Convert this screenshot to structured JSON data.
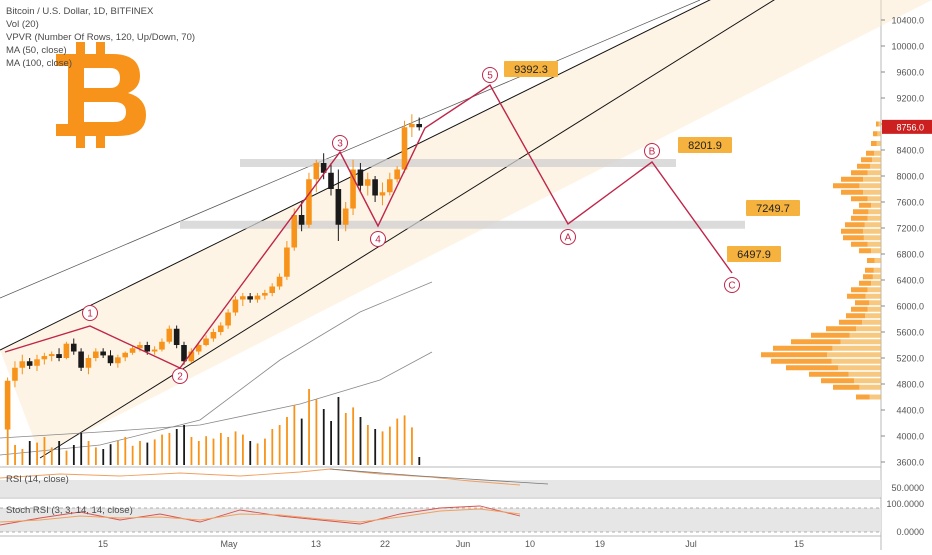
{
  "title": "Bitcoin / U.S. Dollar, 1D, BITFINEX",
  "indicators": [
    "Vol (20)",
    "VPVR (Number Of Rows, 120, Up/Down, 70)",
    "MA (50, close)",
    "MA (100, close)"
  ],
  "rsi_label": "RSI (14, close)",
  "stoch_label": "Stoch RSI (3, 3, 14, 14, close)",
  "logo_icon": "bitcoin-logo-icon",
  "colors": {
    "up": "#f7931a",
    "down": "#1a1a1a",
    "wave": "#c0254a",
    "callout": "#f6b23e",
    "price_tag": "#cc1f1f",
    "channel": "#fbe7c6"
  },
  "chart_data": {
    "type": "candlestick",
    "y_range": [
      3600,
      10800
    ],
    "x_ticks": [
      "15",
      "May",
      "13",
      "22",
      "Jun",
      "10",
      "19",
      "Jul",
      "15"
    ],
    "y_ticks": [
      "10400.0",
      "10000.0",
      "9600.0",
      "9200.0",
      "8800.0",
      "8400.0",
      "8000.0",
      "7600.0",
      "7200.0",
      "6800.0",
      "6400.0",
      "6000.0",
      "5600.0",
      "5200.0",
      "4800.0",
      "4400.0",
      "4000.0",
      "3600.0"
    ],
    "current_price": "8756.0",
    "candles": [
      {
        "o": 4100,
        "h": 4900,
        "l": 3950,
        "c": 4850
      },
      {
        "o": 4850,
        "h": 5150,
        "l": 4750,
        "c": 5050
      },
      {
        "o": 5050,
        "h": 5250,
        "l": 4950,
        "c": 5150
      },
      {
        "o": 5150,
        "h": 5200,
        "l": 5030,
        "c": 5080
      },
      {
        "o": 5080,
        "h": 5250,
        "l": 5000,
        "c": 5180
      },
      {
        "o": 5180,
        "h": 5280,
        "l": 5100,
        "c": 5230
      },
      {
        "o": 5230,
        "h": 5300,
        "l": 5150,
        "c": 5260
      },
      {
        "o": 5260,
        "h": 5350,
        "l": 5150,
        "c": 5200
      },
      {
        "o": 5200,
        "h": 5450,
        "l": 5180,
        "c": 5420
      },
      {
        "o": 5420,
        "h": 5500,
        "l": 5250,
        "c": 5300
      },
      {
        "o": 5300,
        "h": 5350,
        "l": 5000,
        "c": 5050
      },
      {
        "o": 5050,
        "h": 5250,
        "l": 4950,
        "c": 5200
      },
      {
        "o": 5200,
        "h": 5350,
        "l": 5150,
        "c": 5300
      },
      {
        "o": 5300,
        "h": 5350,
        "l": 5200,
        "c": 5240
      },
      {
        "o": 5240,
        "h": 5320,
        "l": 5080,
        "c": 5120
      },
      {
        "o": 5120,
        "h": 5250,
        "l": 5050,
        "c": 5210
      },
      {
        "o": 5210,
        "h": 5300,
        "l": 5150,
        "c": 5280
      },
      {
        "o": 5280,
        "h": 5380,
        "l": 5250,
        "c": 5350
      },
      {
        "o": 5350,
        "h": 5450,
        "l": 5300,
        "c": 5400
      },
      {
        "o": 5400,
        "h": 5450,
        "l": 5250,
        "c": 5300
      },
      {
        "o": 5300,
        "h": 5380,
        "l": 5250,
        "c": 5330
      },
      {
        "o": 5330,
        "h": 5500,
        "l": 5300,
        "c": 5450
      },
      {
        "o": 5450,
        "h": 5700,
        "l": 5420,
        "c": 5650
      },
      {
        "o": 5650,
        "h": 5700,
        "l": 5350,
        "c": 5400
      },
      {
        "o": 5400,
        "h": 5450,
        "l": 5100,
        "c": 5150
      },
      {
        "o": 5150,
        "h": 5350,
        "l": 5120,
        "c": 5300
      },
      {
        "o": 5300,
        "h": 5450,
        "l": 5250,
        "c": 5400
      },
      {
        "o": 5400,
        "h": 5550,
        "l": 5380,
        "c": 5500
      },
      {
        "o": 5500,
        "h": 5650,
        "l": 5450,
        "c": 5600
      },
      {
        "o": 5600,
        "h": 5750,
        "l": 5550,
        "c": 5700
      },
      {
        "o": 5700,
        "h": 5950,
        "l": 5650,
        "c": 5900
      },
      {
        "o": 5900,
        "h": 6150,
        "l": 5850,
        "c": 6100
      },
      {
        "o": 6100,
        "h": 6200,
        "l": 6000,
        "c": 6150
      },
      {
        "o": 6150,
        "h": 6200,
        "l": 6050,
        "c": 6100
      },
      {
        "o": 6100,
        "h": 6200,
        "l": 6050,
        "c": 6160
      },
      {
        "o": 6160,
        "h": 6250,
        "l": 6100,
        "c": 6200
      },
      {
        "o": 6200,
        "h": 6350,
        "l": 6150,
        "c": 6300
      },
      {
        "o": 6300,
        "h": 6500,
        "l": 6250,
        "c": 6450
      },
      {
        "o": 6450,
        "h": 7000,
        "l": 6400,
        "c": 6900
      },
      {
        "o": 6900,
        "h": 7500,
        "l": 6850,
        "c": 7400
      },
      {
        "o": 7400,
        "h": 7600,
        "l": 7150,
        "c": 7250
      },
      {
        "o": 7250,
        "h": 8050,
        "l": 7200,
        "c": 7950
      },
      {
        "o": 7950,
        "h": 8250,
        "l": 7750,
        "c": 8200
      },
      {
        "o": 8200,
        "h": 8350,
        "l": 7950,
        "c": 8050
      },
      {
        "o": 8050,
        "h": 8200,
        "l": 7700,
        "c": 7800
      },
      {
        "o": 7800,
        "h": 8100,
        "l": 7000,
        "c": 7250
      },
      {
        "o": 7250,
        "h": 7600,
        "l": 7150,
        "c": 7500
      },
      {
        "o": 7500,
        "h": 8250,
        "l": 7400,
        "c": 8100
      },
      {
        "o": 8100,
        "h": 8200,
        "l": 7750,
        "c": 7850
      },
      {
        "o": 7850,
        "h": 8050,
        "l": 7700,
        "c": 7950
      },
      {
        "o": 7950,
        "h": 8000,
        "l": 7600,
        "c": 7700
      },
      {
        "o": 7700,
        "h": 7900,
        "l": 7550,
        "c": 7750
      },
      {
        "o": 7750,
        "h": 8050,
        "l": 7700,
        "c": 7950
      },
      {
        "o": 7950,
        "h": 8150,
        "l": 7900,
        "c": 8100
      },
      {
        "o": 8100,
        "h": 8850,
        "l": 8050,
        "c": 8750
      },
      {
        "o": 8750,
        "h": 8950,
        "l": 8600,
        "c": 8800
      },
      {
        "o": 8800,
        "h": 8900,
        "l": 8700,
        "c": 8750
      }
    ],
    "volumes": [
      0.55,
      0.25,
      0.2,
      0.3,
      0.28,
      0.35,
      0.22,
      0.3,
      0.18,
      0.25,
      0.4,
      0.3,
      0.22,
      0.2,
      0.26,
      0.3,
      0.35,
      0.24,
      0.3,
      0.28,
      0.32,
      0.38,
      0.4,
      0.45,
      0.5,
      0.35,
      0.3,
      0.36,
      0.33,
      0.4,
      0.35,
      0.42,
      0.38,
      0.3,
      0.27,
      0.33,
      0.45,
      0.5,
      0.6,
      0.75,
      0.58,
      0.95,
      0.82,
      0.7,
      0.55,
      0.85,
      0.65,
      0.72,
      0.6,
      0.5,
      0.45,
      0.42,
      0.48,
      0.58,
      0.62,
      0.47,
      0.1
    ],
    "wave_points": [
      {
        "label": "1",
        "x": 1,
        "y": 5700
      },
      {
        "label": "2",
        "x": 3,
        "y": 5150
      },
      {
        "label": "3",
        "x": 5,
        "y": 8350
      },
      {
        "label": "4",
        "x": 6,
        "y": 7230
      },
      {
        "label": "5",
        "x": 8,
        "y": 9392.3
      },
      {
        "label": "A",
        "x": 9,
        "y": 7250
      },
      {
        "label": "B",
        "x": 10,
        "y": 8201.9
      },
      {
        "label": "C",
        "x": 11,
        "y": 6497.9
      }
    ],
    "callouts": [
      "9392.3",
      "8201.9",
      "7249.7",
      "6497.9"
    ],
    "rsi_ticks": [
      "50.0000"
    ],
    "stoch_ticks": [
      "100.0000",
      "0.0000"
    ]
  }
}
